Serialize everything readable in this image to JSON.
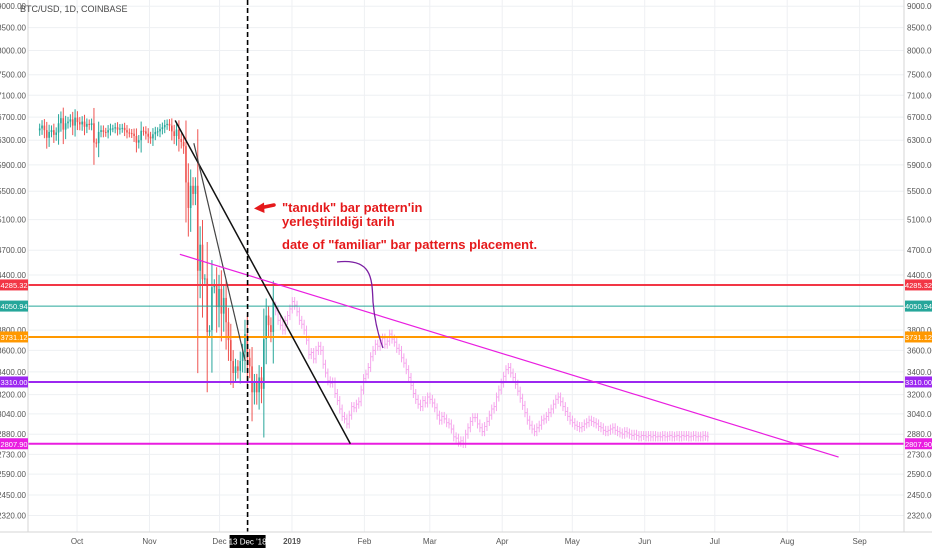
{
  "window_title": "BTC/USD, 1D, COINBASE",
  "chart_data": {
    "type": "candlestick",
    "symbol": "BTC/USD",
    "interval": "1D",
    "exchange": "COINBASE",
    "title": "BTC/USD, 1D, COINBASE",
    "x_ticks": [
      "Oct",
      "Nov",
      "Dec",
      "2019",
      "Feb",
      "Mar",
      "Apr",
      "May",
      "Jun",
      "Jul",
      "Aug",
      "Sep"
    ],
    "x_start": "2018-09-10",
    "x_end": "2019-09-20",
    "y_ticks": [
      "9000.00",
      "8500.00",
      "8000.00",
      "7500.00",
      "7100.00",
      "6700.00",
      "6300.00",
      "5900.00",
      "5500.00",
      "5100.00",
      "4700.00",
      "4400.00",
      "3800.00",
      "3600.00",
      "3400.00",
      "3200.00",
      "3040.00",
      "2880.00",
      "2730.00",
      "2590.00",
      "2450.00",
      "2320.00"
    ],
    "y_scale": "log",
    "ylim": [
      2220,
      9150
    ],
    "horizontal_levels": [
      {
        "label": "4285.32",
        "value": 4285.32,
        "color": "#f23645",
        "width": 2
      },
      {
        "label": "4050.94",
        "value": 4050.94,
        "color": "#26a69a",
        "width": 1
      },
      {
        "label": "3731.12",
        "value": 3731.12,
        "color": "#ff9800",
        "width": 2
      },
      {
        "label": "3310.00",
        "value": 3310.0,
        "color": "#9c27f0",
        "width": 2
      },
      {
        "label": "2807.90",
        "value": 2807.9,
        "color": "#e91ee0",
        "width": 2
      }
    ],
    "vertical_marker": {
      "date": "2018-12-13",
      "label": "13 Dec '18"
    },
    "trendlines": [
      {
        "from": [
          "2018-11-12",
          6640
        ],
        "to": [
          "2019-01-26",
          2807.9
        ],
        "color": "#111111"
      },
      {
        "from": [
          "2018-11-20",
          6250
        ],
        "to": [
          "2018-12-12",
          3500
        ],
        "color": "#444444"
      },
      {
        "from": [
          "2018-11-14",
          4650
        ],
        "to": [
          "2019-08-23",
          2710
        ],
        "color": "#e91ee0"
      }
    ],
    "candles_daily_close": {
      "start_date": "2018-09-15",
      "real_until": "2018-12-24",
      "values": [
        6500,
        6550,
        6470,
        6340,
        6440,
        6470,
        6390,
        6430,
        6590,
        6680,
        6480,
        6590,
        6620,
        6660,
        6550,
        6690,
        6610,
        6570,
        6620,
        6530,
        6580,
        6560,
        6590,
        6260,
        6250,
        6440,
        6470,
        6440,
        6430,
        6470,
        6500,
        6500,
        6520,
        6480,
        6500,
        6510,
        6470,
        6430,
        6420,
        6410,
        6370,
        6260,
        6300,
        6460,
        6450,
        6410,
        6360,
        6330,
        6400,
        6440,
        6450,
        6490,
        6520,
        6560,
        6580,
        6550,
        6450,
        6370,
        6480,
        6320,
        6270,
        6200,
        5630,
        5260,
        5580,
        5460,
        5580,
        4450,
        4770,
        4350,
        4360,
        3780,
        3800,
        4260,
        4290,
        4040,
        4240,
        3970,
        4140,
        3880,
        3700,
        3500,
        3390,
        3450,
        3410,
        3500,
        3580,
        3760,
        3530,
        3450,
        3220,
        3300,
        3220,
        3350,
        3250,
        3710,
        3950,
        3850,
        3780,
        4100
      ]
    },
    "projection_closes": {
      "start_date": "2018-12-24",
      "end_date": "2019-06-28",
      "values": [
        4050,
        4000,
        3900,
        3850,
        3800,
        3900,
        3950,
        4020,
        4100,
        4060,
        3990,
        3900,
        3860,
        3800,
        3700,
        3560,
        3580,
        3520,
        3600,
        3640,
        3600,
        3470,
        3390,
        3320,
        3300,
        3310,
        3210,
        3150,
        3080,
        3020,
        3000,
        2960,
        3030,
        3100,
        3090,
        3120,
        3140,
        3240,
        3340,
        3380,
        3440,
        3540,
        3600,
        3660,
        3640,
        3700,
        3720,
        3660,
        3690,
        3760,
        3710,
        3680,
        3620,
        3600,
        3530,
        3480,
        3420,
        3350,
        3280,
        3210,
        3160,
        3120,
        3100,
        3150,
        3130,
        3180,
        3160,
        3130,
        3090,
        3030,
        2990,
        3020,
        3000,
        2970,
        2960,
        2920,
        2860,
        2850,
        2820,
        2830,
        2810,
        2880,
        2930,
        2980,
        3010,
        3010,
        2960,
        2930,
        2900,
        2940,
        2980,
        3030,
        3080,
        3100,
        3180,
        3240,
        3300,
        3360,
        3420,
        3440,
        3390,
        3350,
        3290,
        3230,
        3170,
        3110,
        3050,
        2990,
        2950,
        2920,
        2900,
        2930,
        2950,
        2990,
        3000,
        3020,
        3050,
        3080,
        3120,
        3160,
        3180,
        3140,
        3100,
        3060,
        3020,
        2990,
        2970,
        2950,
        2940,
        2930,
        2940,
        2960,
        2970,
        2990,
        2980,
        2970,
        2960,
        2940,
        2930,
        2910,
        2900,
        2910,
        2920,
        2930,
        2910,
        2900,
        2890,
        2880,
        2900,
        2890,
        2880,
        2870,
        2880,
        2870,
        2860,
        2870,
        2870,
        2860,
        2870,
        2860,
        2870,
        2860,
        2865,
        2860,
        2870,
        2860,
        2865,
        2870,
        2860,
        2865,
        2870,
        2860,
        2870,
        2865,
        2870,
        2860,
        2865,
        2870,
        2860,
        2865,
        2860,
        2870,
        2865,
        2860
      ]
    },
    "annotations": {
      "turkish": [
        "\"tanıdık\" bar pattern'in",
        "yerleştirildiği tarih"
      ],
      "english": "date of \"familiar\" bar patterns placement."
    }
  },
  "colors": {
    "up": "#26a69a",
    "down": "#ef5350",
    "projection": "#f5a6ec",
    "vertical_marker": "#000000",
    "arrow": "#e5191b",
    "curve": "#7b1fa2",
    "date_badge_bg": "#000000"
  }
}
